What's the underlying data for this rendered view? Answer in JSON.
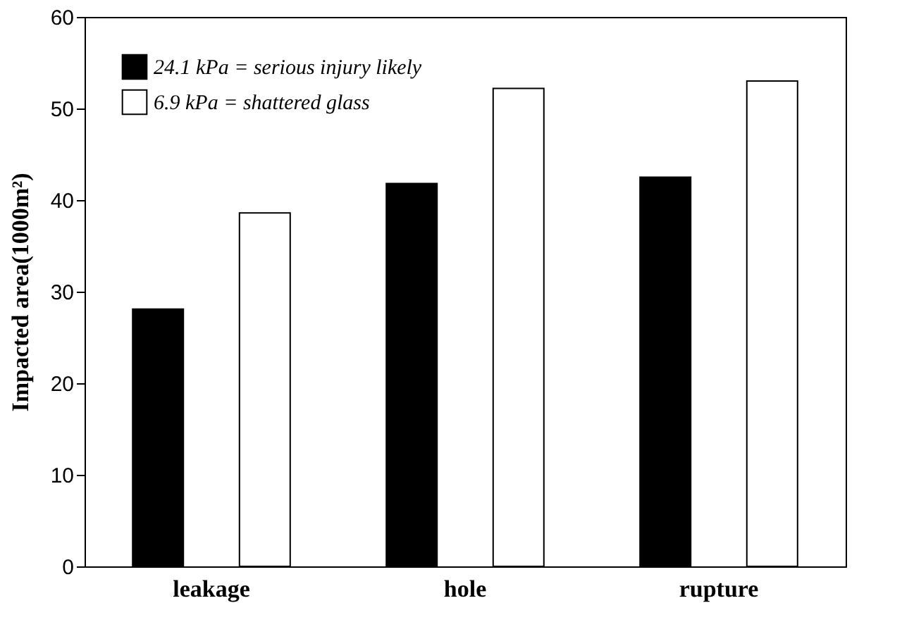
{
  "chart_data": {
    "type": "bar",
    "ylabel": "Impacted area(1000m²)",
    "categories": [
      "leakage",
      "hole",
      "rupture"
    ],
    "series": [
      {
        "name": "24.1 kPa = serious injury likely",
        "color": "#000000",
        "values": [
          28.1,
          41.8,
          42.5
        ]
      },
      {
        "name": "6.9 kPa = shattered glass",
        "color": "#ffffff",
        "values": [
          38.6,
          52.2,
          53.0
        ]
      }
    ],
    "ylim": [
      0,
      60
    ],
    "yticks": [
      0,
      10,
      20,
      30,
      40,
      50,
      60
    ],
    "grid": false,
    "legend": "top left"
  }
}
